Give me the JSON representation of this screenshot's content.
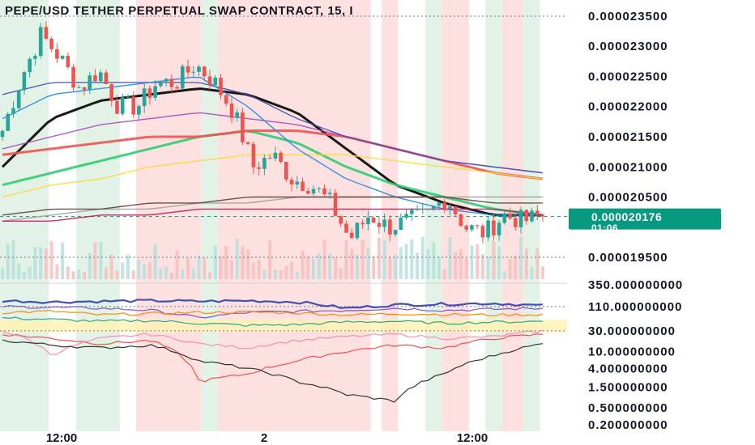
{
  "title": "PEPE/USD TETHER PERPETUAL SWAP CONTRACT, 15, I",
  "colors": {
    "background": "#ffffff",
    "bull_candle": "#26a69a",
    "bear_candle": "#ef5350",
    "green_band": "#e3f2e7",
    "red_band": "#fde0e0",
    "price_tag": "#089981",
    "black_ma": "#000000"
  },
  "price_tag": {
    "value": "0.000020176",
    "countdown": "01:06"
  },
  "time_axis": {
    "labels": [
      "12:00",
      "2",
      "12:00"
    ]
  },
  "chart_data": [
    {
      "type": "candlestick",
      "panel": "price",
      "ylim": [
        1.93e-05,
        2.37e-05
      ],
      "y_ticks": [
        "0.000023500",
        "0.000023000",
        "0.000022500",
        "0.000022000",
        "0.000021500",
        "0.000021000",
        "0.000020500",
        "0.000019500"
      ],
      "y_tick_values": [
        2.35e-05,
        2.3e-05,
        2.25e-05,
        2.2e-05,
        2.15e-05,
        2.1e-05,
        2.05e-05,
        1.95e-05
      ],
      "last_price": 2.0176e-05,
      "close_waypoints": [
        2.16e-05,
        2.25e-05,
        2.32e-05,
        2.28e-05,
        2.23e-05,
        2.26e-05,
        2.2e-05,
        2.2e-05,
        2.24e-05,
        2.24e-05,
        2.27e-05,
        2.24e-05,
        2.19e-05,
        2.1e-05,
        2.12e-05,
        2.08e-05,
        2.07e-05,
        2.04e-05,
        1.98e-05,
        2.02e-05,
        2e-05,
        2.01e-05,
        2.02e-05,
        2.05e-05,
        2e-05,
        1.99e-05,
        2.02e-05,
        2.01e-05,
        2.02e-05
      ],
      "moving_averages": [
        {
          "color": "#000000",
          "values": [
            2.1e-05,
            2.18e-05,
            2.21e-05,
            2.22e-05,
            2.23e-05,
            2.22e-05,
            2.19e-05,
            2.13e-05,
            2.07e-05,
            2.04e-05,
            2.02e-05,
            2.02e-05
          ]
        },
        {
          "color": "#2ecc71",
          "values": [
            2.07e-05,
            2.09e-05,
            2.11e-05,
            2.13e-05,
            2.15e-05,
            2.16e-05,
            2.14e-05,
            2.1e-05,
            2.07e-05,
            2.05e-05,
            2.03e-05,
            2.02e-05
          ]
        },
        {
          "color": "#ef5350",
          "values": [
            2.12e-05,
            2.13e-05,
            2.14e-05,
            2.15e-05,
            2.15e-05,
            2.16e-05,
            2.16e-05,
            2.15e-05,
            2.13e-05,
            2.11e-05,
            2.09e-05,
            2.08e-05
          ]
        },
        {
          "color": "#fdd835",
          "values": [
            2.05e-05,
            2.07e-05,
            2.08e-05,
            2.1e-05,
            2.11e-05,
            2.12e-05,
            2.12e-05,
            2.12e-05,
            2.11e-05,
            2.1e-05,
            2.09e-05,
            2.08e-05
          ]
        },
        {
          "color": "#ab47bc",
          "values": [
            2.13e-05,
            2.15e-05,
            2.17e-05,
            2.18e-05,
            2.19e-05,
            2.18e-05,
            2.17e-05,
            2.15e-05,
            2.13e-05,
            2.11e-05,
            2.1e-05,
            2.09e-05
          ]
        },
        {
          "color": "#3f51b5",
          "values": [
            2.22e-05,
            2.24e-05,
            2.24e-05,
            2.24e-05,
            2.24e-05,
            2.22e-05,
            2.18e-05,
            2.15e-05,
            2.13e-05,
            2.11e-05,
            2.1e-05,
            2.09e-05
          ]
        },
        {
          "color": "#1e88e5",
          "values": [
            2.18e-05,
            2.22e-05,
            2.23e-05,
            2.24e-05,
            2.25e-05,
            2.2e-05,
            2.13e-05,
            2.08e-05,
            2.05e-05,
            2.03e-05,
            2.02e-05,
            2.02e-05
          ]
        },
        {
          "color": "#9e9e9e",
          "values": [
            2.01e-05,
            2.02e-05,
            2.03e-05,
            2.03e-05,
            2.04e-05,
            2.04e-05,
            2.05e-05,
            2.05e-05,
            2.05e-05,
            2.05e-05,
            2.05e-05,
            2.05e-05
          ]
        },
        {
          "color": "#5d4037",
          "values": [
            2.02e-05,
            2.03e-05,
            2.03e-05,
            2.04e-05,
            2.04e-05,
            2.05e-05,
            2.05e-05,
            2.05e-05,
            2.05e-05,
            2.05e-05,
            2.04e-05,
            2.04e-05
          ]
        },
        {
          "color": "#c2185b",
          "values": [
            2.01e-05,
            2.01e-05,
            2.02e-05,
            2.02e-05,
            2.03e-05,
            2.03e-05,
            2.03e-05,
            2.03e-05,
            2.03e-05,
            2.03e-05,
            2.03e-05,
            2.02e-05
          ]
        }
      ]
    },
    {
      "type": "line",
      "panel": "indicator",
      "y_scale": "log",
      "ylim": [
        0.2,
        350
      ],
      "y_ticks": [
        "350.000000000",
        "110.000000000",
        "30.000000000",
        "10.000000000",
        "4.000000000",
        "1.500000000",
        "0.500000000",
        "0.200000000"
      ],
      "y_tick_values": [
        350,
        110,
        30,
        10,
        4,
        1.5,
        0.5,
        0.2
      ],
      "highlight_band": [
        28,
        55
      ],
      "series": [
        {
          "color": "#3f51b5",
          "values": [
            150,
            140,
            145,
            150,
            145,
            150,
            140,
            100,
            120,
            125,
            130,
            115
          ]
        },
        {
          "color": "#7e57c2",
          "values": [
            110,
            105,
            100,
            90,
            60,
            80,
            85,
            90,
            100,
            90,
            95,
            100
          ]
        },
        {
          "color": "#fb8c00",
          "values": [
            80,
            85,
            70,
            75,
            80,
            82,
            78,
            70,
            75,
            72,
            70,
            72
          ]
        },
        {
          "color": "#26a69a",
          "values": [
            60,
            55,
            50,
            52,
            45,
            40,
            42,
            48,
            50,
            45,
            48,
            50
          ]
        },
        {
          "color": "#ef5350",
          "values": [
            25,
            20,
            15,
            18,
            2,
            3,
            6,
            10,
            14,
            12,
            20,
            25
          ]
        },
        {
          "color": "#f48fb1",
          "values": [
            30,
            8,
            20,
            25,
            15,
            12,
            18,
            22,
            25,
            20,
            22,
            30
          ]
        },
        {
          "color": "#333333",
          "values": [
            18,
            14,
            12,
            14,
            6,
            4,
            2,
            1,
            0.7,
            3,
            8,
            15
          ]
        }
      ]
    }
  ]
}
